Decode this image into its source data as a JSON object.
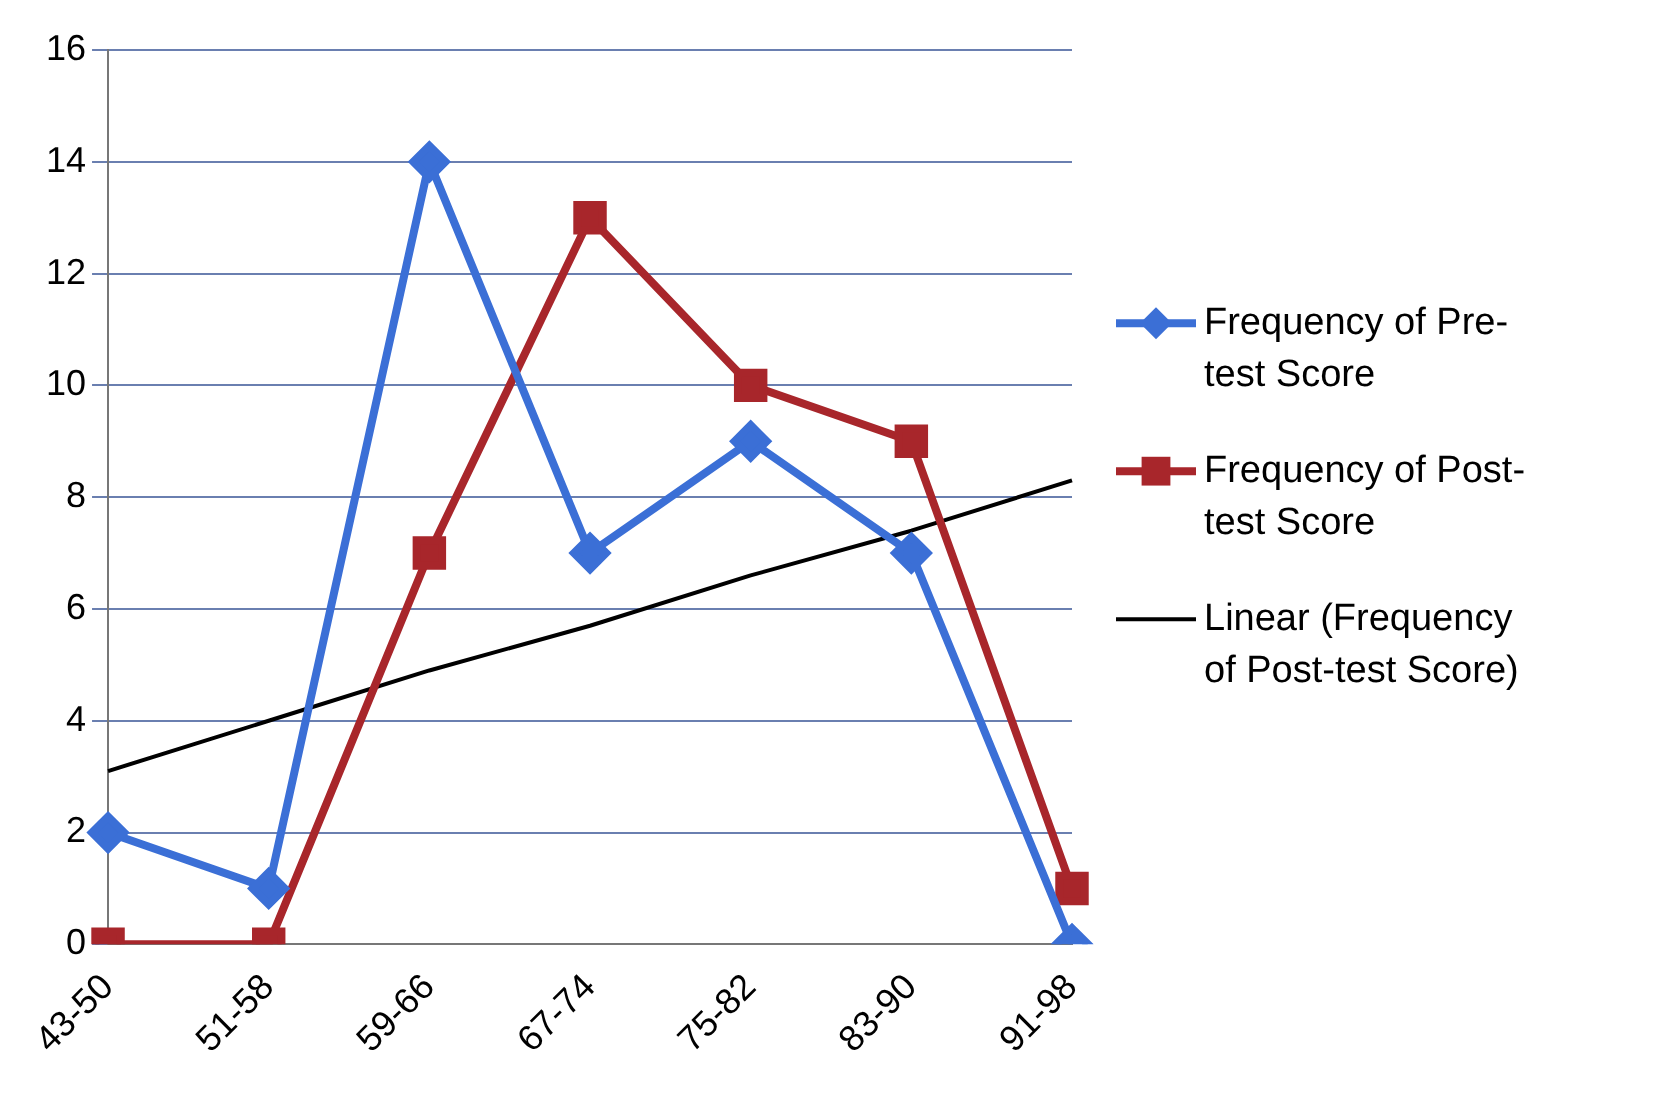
{
  "chart_data": {
    "type": "line",
    "categories": [
      "43-50",
      "51-58",
      "59-66",
      "67-74",
      "75-82",
      "83-90",
      "91-98"
    ],
    "series": [
      {
        "name": "Frequency of Pre-test Score",
        "color": "#3b6fd6",
        "marker": "diamond",
        "values": [
          2,
          1,
          14,
          7,
          9,
          7,
          0
        ]
      },
      {
        "name": "Frequency of Post-test Score",
        "color": "#a8262b",
        "marker": "square",
        "values": [
          0,
          0,
          7,
          13,
          10,
          9,
          1
        ]
      },
      {
        "name": "Linear (Frequency of Post-test Score)",
        "color": "#000000",
        "marker": "none",
        "values": [
          3.1,
          4.0,
          4.9,
          5.7,
          6.6,
          7.4,
          8.3
        ]
      }
    ],
    "ylim": [
      0,
      16
    ],
    "yticks": [
      0,
      2,
      4,
      6,
      8,
      10,
      12,
      14,
      16
    ],
    "grid": "y",
    "legend": "right"
  }
}
